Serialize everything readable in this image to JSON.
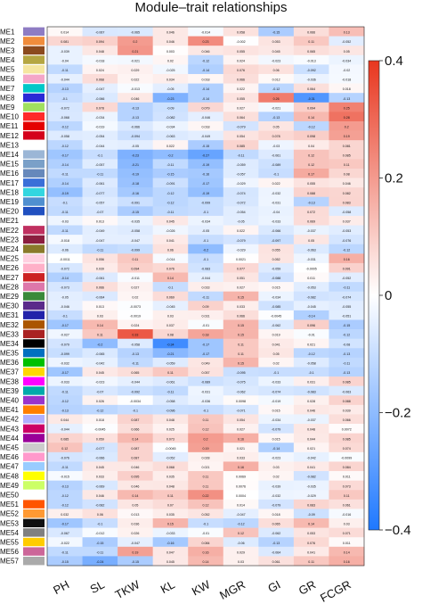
{
  "chart_data": {
    "type": "heatmap",
    "title": "Module–trait relationships",
    "columns": [
      "PH",
      "SL",
      "TKW",
      "KL",
      "KW",
      "MGR",
      "GI",
      "GR",
      "FCGR"
    ],
    "rows": [
      "ME1",
      "ME2",
      "ME3",
      "ME4",
      "ME5",
      "ME6",
      "ME7",
      "ME8",
      "ME9",
      "ME10",
      "ME11",
      "ME12",
      "ME13",
      "ME14",
      "ME15",
      "ME16",
      "ME17",
      "ME18",
      "ME19",
      "ME20",
      "ME21",
      "ME22",
      "ME23",
      "ME24",
      "ME25",
      "ME26",
      "ME27",
      "ME28",
      "ME29",
      "ME30",
      "ME31",
      "ME32",
      "ME33",
      "ME34",
      "ME35",
      "ME36",
      "ME37",
      "ME38",
      "ME39",
      "ME40",
      "ME41",
      "ME42",
      "ME43",
      "ME44",
      "ME45",
      "ME46",
      "ME47",
      "ME48",
      "ME49",
      "ME50",
      "ME51",
      "ME52",
      "ME53",
      "ME54",
      "ME55",
      "ME56",
      "ME57"
    ],
    "module_colors": [
      "#8e7cc3",
      "#f08c3c",
      "#8b4a1e",
      "#b5a642",
      "#f5e6a0",
      "#f4a6c8",
      "#00c8c8",
      "#2a2ad6",
      "#a0e060",
      "#ff2a2a",
      "#e40000",
      "#d4001a",
      "#ffffff",
      "#9bb6d6",
      "#7aa0c8",
      "#6688bb",
      "#3a6fd8",
      "#33d6e0",
      "#4f8fd0",
      "#2050c0",
      "#ffffff",
      "#c03060",
      "#8b1e3f",
      "#8a7a2a",
      "#ffd0e0",
      "#ffb0c8",
      "#cc2222",
      "#dd77aa",
      "#3a8a3a",
      "#5a2a8a",
      "#2222aa",
      "#aa5500",
      "#aa2222",
      "#000000",
      "#0070c0",
      "#00c000",
      "#ffd700",
      "#ff00ff",
      "#00aaaa",
      "#9933cc",
      "#ff7f00",
      "#b0b0ff",
      "#cc0066",
      "#990099",
      "#cccccc",
      "#ff99cc",
      "#99ccff",
      "#ffff00",
      "#ccff66",
      "#ffffff",
      "#ff5500",
      "#ff9933",
      "#111111",
      "#808080",
      "#ffcc00",
      "#cc6699",
      "#aaaaaa"
    ],
    "values": [
      [
        0.014,
        -0.067,
        -0.065,
        0.046,
        -0.014,
        0.058,
        -0.15,
        0.066,
        0.13
      ],
      [
        0.081,
        0.094,
        0.2,
        0.046,
        0.23,
        -0.002,
        0.053,
        0.11,
        -0.052
      ],
      [
        -0.039,
        0.048,
        0.21,
        0.003,
        0.046,
        0.055,
        0.045,
        0.065,
        0.05
      ],
      [
        -0.04,
        -0.018,
        -0.021,
        0.02,
        -0.12,
        0.024,
        -0.023,
        -0.013,
        -0.034
      ],
      [
        -0.11,
        0.024,
        0.029,
        -0.025,
        -0.14,
        0.076,
        0.06,
        -0.092,
        -0.02
      ],
      [
        -0.044,
        0.068,
        0.022,
        0.034,
        0.018,
        0.066,
        0.012,
        -0.036,
        -0.018
      ],
      [
        -0.13,
        -0.047,
        -0.013,
        -0.05,
        -0.14,
        0.022,
        -0.12,
        0.064,
        0.018
      ],
      [
        -0.1,
        -0.066,
        0.046,
        -0.23,
        -0.14,
        0.055,
        0.26,
        -0.31,
        -0.13
      ],
      [
        -0.072,
        0.078,
        -0.13,
        -0.09,
        0.079,
        0.027,
        -0.021,
        0.094,
        0.25
      ],
      [
        -0.068,
        -0.034,
        -0.13,
        -0.082,
        -0.046,
        0.064,
        -0.13,
        0.14,
        0.28
      ],
      [
        -0.12,
        -0.019,
        -0.066,
        -0.034,
        0.018,
        -0.079,
        0.05,
        -0.12,
        0.2
      ],
      [
        -0.058,
        -0.054,
        -0.094,
        -0.063,
        -0.049,
        0.054,
        0.078,
        0.098,
        0.19
      ],
      [
        -0.12,
        -0.044,
        -0.05,
        0.022,
        -0.15,
        0.085,
        -0.03,
        0.04,
        0.081
      ],
      [
        -0.17,
        -0.1,
        -0.23,
        -0.2,
        -0.27,
        -0.11,
        -0.061,
        0.12,
        0.085
      ],
      [
        -0.14,
        -0.057,
        -0.21,
        -0.11,
        -0.19,
        -0.059,
        -0.089,
        0.12,
        0.11
      ],
      [
        -0.11,
        -0.11,
        -0.19,
        -0.15,
        -0.16,
        -0.057,
        -0.1,
        0.17,
        0.08
      ],
      [
        -0.14,
        -0.061,
        -0.18,
        -0.091,
        -0.17,
        -0.029,
        0.022,
        0.055,
        0.046
      ],
      [
        -0.19,
        -0.077,
        -0.16,
        -0.12,
        -0.19,
        -0.074,
        -0.032,
        0.088,
        0.082
      ],
      [
        -0.1,
        -0.057,
        -0.091,
        -0.12,
        -0.099,
        -0.072,
        -0.031,
        -0.13,
        0.083
      ],
      [
        -0.11,
        -0.07,
        -0.15,
        -0.11,
        -0.1,
        -0.054,
        -0.04,
        0.072,
        -0.058
      ],
      [
        -0.03,
        0.013,
        -0.035,
        0.045,
        -0.034,
        -0.05,
        -0.033,
        0.069,
        0.037
      ],
      [
        -0.11,
        -0.049,
        -0.058,
        -0.026,
        -0.05,
        0.022,
        -0.066,
        -0.037,
        -0.053
      ],
      [
        -0.018,
        -0.047,
        -0.047,
        0.041,
        -0.1,
        -0.079,
        -0.097,
        0.05,
        -0.076
      ],
      [
        -0.06,
        -0.11,
        -0.099,
        0.06,
        -0.2,
        -0.029,
        0.055,
        -0.063,
        -0.12
      ],
      [
        -0.0011,
        0.056,
        0.11,
        -0.014,
        -0.1,
        0.0021,
        0.052,
        -0.031,
        0.16
      ],
      [
        -0.072,
        0.039,
        0.094,
        0.076,
        -0.083,
        0.077,
        -0.059,
        -0.0005,
        0.091
      ],
      [
        -0.14,
        -0.061,
        -0.011,
        0.14,
        -0.044,
        0.051,
        -0.088,
        0.011,
        -0.052
      ],
      [
        -0.073,
        0.066,
        0.027,
        -0.1,
        0.033,
        0.027,
        0.015,
        -0.053,
        -0.11
      ],
      [
        -0.05,
        -0.064,
        0.02,
        0.069,
        -0.11,
        0.15,
        -0.034,
        -0.082,
        -0.074
      ],
      [
        -0.046,
        0.013,
        -0.0073,
        -0.045,
        0.09,
        0.033,
        -0.085,
        -0.045,
        -0.055
      ],
      [
        -0.1,
        0.03,
        -0.0019,
        0.03,
        0.031,
        0.066,
        -0.0045,
        -0.14,
        -0.051
      ],
      [
        -0.17,
        0.14,
        0.024,
        0.037,
        -0.01,
        0.15,
        -0.062,
        0.096,
        -0.15
      ],
      [
        -0.027,
        0.11,
        0.33,
        0.08,
        0.18,
        0.15,
        0.019,
        -0.01,
        -0.12
      ],
      [
        -0.079,
        -0.2,
        -0.058,
        -0.34,
        -0.17,
        0.11,
        0.041,
        0.021,
        -0.08
      ],
      [
        -0.099,
        -0.065,
        -0.13,
        -0.21,
        -0.17,
        0.11,
        0.05,
        -0.12,
        -0.13
      ],
      [
        -0.032,
        -0.042,
        -0.11,
        -0.059,
        0.049,
        0.15,
        0.02,
        -0.058,
        -0.11
      ],
      [
        -0.17,
        0.045,
        0.065,
        0.11,
        0.057,
        -0.095,
        -0.1,
        -0.1,
        -0.13
      ],
      [
        -0.033,
        -0.023,
        -0.044,
        -0.061,
        -0.089,
        -0.075,
        -0.033,
        0.031,
        0.085
      ],
      [
        -0.11,
        -0.07,
        -0.092,
        -0.11,
        -0.031,
        -0.062,
        -0.074,
        -0.083,
        -0.063
      ],
      [
        -0.12,
        0.026,
        -0.0034,
        -0.058,
        -0.036,
        0.0098,
        -0.019,
        0.028,
        0.088
      ],
      [
        -0.13,
        -0.12,
        -0.1,
        -0.096,
        -0.1,
        -0.071,
        0.015,
        0.046,
        0.039
      ],
      [
        0.044,
        0.018,
        0.087,
        0.048,
        0.11,
        0.054,
        -0.034,
        -0.037,
        0.066
      ],
      [
        -0.044,
        -0.0045,
        0.066,
        0.025,
        0.12,
        0.027,
        -0.079,
        0.048,
        0.0072
      ],
      [
        0.085,
        0.059,
        0.14,
        0.073,
        0.2,
        0.16,
        0.015,
        0.044,
        0.085
      ],
      [
        0.12,
        -0.077,
        0.087,
        -0.0045,
        0.19,
        0.021,
        -0.14,
        0.021,
        0.074
      ],
      [
        -0.076,
        -0.066,
        0.087,
        -0.052,
        0.028,
        0.033,
        -0.023,
        -0.042,
        -0.0099
      ],
      [
        -0.11,
        0.045,
        0.046,
        0.068,
        0.021,
        0.16,
        0.03,
        0.041,
        0.084
      ],
      [
        -0.015,
        0.033,
        0.095,
        0.035,
        0.11,
        0.0069,
        0.02,
        -0.082,
        0.011
      ],
      [
        -0.13,
        -0.069,
        0.046,
        0.048,
        0.11,
        0.0076,
        -0.039,
        -0.035,
        0.073
      ],
      [
        -0.12,
        0.046,
        0.14,
        0.11,
        0.22,
        0.0004,
        -0.032,
        -0.029,
        0.11
      ],
      [
        -0.12,
        -0.082,
        0.05,
        0.07,
        0.12,
        0.014,
        -0.079,
        0.083,
        0.061
      ],
      [
        0.032,
        0.06,
        0.013,
        0.035,
        0.052,
        -0.047,
        0.018,
        -0.09,
        -0.016
      ],
      [
        -0.17,
        -0.1,
        0.036,
        0.15,
        -0.1,
        -0.12,
        0.065,
        0.14,
        0.03
      ],
      [
        -0.067,
        -0.012,
        0.026,
        -0.033,
        -0.01,
        0.12,
        -0.062,
        0.053,
        0.071
      ],
      [
        -0.022,
        -0.15,
        -0.047,
        -0.16,
        0.084,
        -0.06,
        -0.13,
        0.076,
        0.011
      ],
      [
        -0.11,
        -0.11,
        0.19,
        0.047,
        0.16,
        0.029,
        -0.064,
        0.041,
        0.14
      ],
      [
        -0.15,
        -0.24,
        -0.15,
        0.045,
        0.14,
        0.03,
        0.061,
        0.11,
        0.16
      ]
    ],
    "colorbar_ticks": [
      "0.4",
      "0.2",
      "0",
      "−0.2",
      "−0.4"
    ],
    "colorbar_range": [
      -0.4,
      0.4
    ],
    "colorscale": {
      "low": "#1e78ff",
      "mid": "#ffffff",
      "high": "#e8361e"
    }
  }
}
